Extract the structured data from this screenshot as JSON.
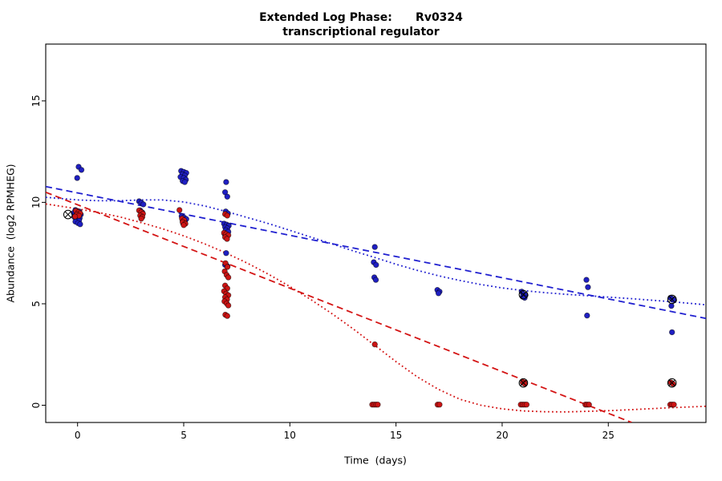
{
  "chart_data": {
    "type": "scatter",
    "title_lines": [
      "Extended Log Phase:      Rv0324",
      "transcriptional regulator"
    ],
    "xlabel": "Time  (days)",
    "ylabel": "Abundance  (log2 RPMHEG)",
    "xlim": [
      -1.5,
      29.6
    ],
    "ylim": [
      -0.85,
      17.8
    ],
    "xticks": [
      0,
      5,
      10,
      15,
      20,
      25
    ],
    "yticks": [
      0,
      5,
      10,
      15
    ],
    "grid": false,
    "legend": null,
    "point_colors": {
      "blue": "#1f1fc3",
      "red": "#cc1414"
    },
    "series": [
      {
        "name": "blue",
        "color": "#1f1fc3",
        "points": [
          [
            0.05,
            11.75
          ],
          [
            0.18,
            11.6
          ],
          [
            -0.02,
            11.2
          ],
          [
            -0.1,
            9.62
          ],
          [
            0.08,
            9.55
          ],
          [
            -0.18,
            9.48
          ],
          [
            0.0,
            9.45
          ],
          [
            0.15,
            9.4
          ],
          [
            -0.08,
            9.35
          ],
          [
            0.05,
            9.3
          ],
          [
            -0.15,
            9.28
          ],
          [
            0.1,
            9.22
          ],
          [
            -0.03,
            9.15
          ],
          [
            0.07,
            9.1
          ],
          [
            -0.1,
            9.05
          ],
          [
            0.02,
            8.98
          ],
          [
            0.12,
            8.92
          ],
          [
            2.9,
            10.05
          ],
          [
            3.0,
            9.98
          ],
          [
            3.1,
            9.9
          ],
          [
            2.95,
            9.6
          ],
          [
            3.05,
            9.5
          ],
          [
            4.88,
            11.55
          ],
          [
            5.0,
            11.5
          ],
          [
            5.12,
            11.45
          ],
          [
            4.93,
            11.38
          ],
          [
            5.05,
            11.32
          ],
          [
            4.85,
            11.25
          ],
          [
            5.0,
            11.2
          ],
          [
            5.1,
            11.12
          ],
          [
            4.95,
            11.05
          ],
          [
            5.05,
            11.0
          ],
          [
            4.9,
            9.32
          ],
          [
            5.02,
            9.25
          ],
          [
            5.12,
            9.18
          ],
          [
            4.95,
            9.1
          ],
          [
            5.05,
            9.02
          ],
          [
            4.98,
            8.95
          ],
          [
            7.0,
            11.0
          ],
          [
            6.95,
            10.5
          ],
          [
            7.05,
            10.28
          ],
          [
            6.98,
            9.55
          ],
          [
            7.08,
            9.45
          ],
          [
            6.9,
            8.95
          ],
          [
            7.02,
            8.9
          ],
          [
            7.12,
            8.85
          ],
          [
            6.95,
            8.78
          ],
          [
            7.05,
            8.72
          ],
          [
            6.98,
            8.62
          ],
          [
            7.1,
            8.55
          ],
          [
            6.92,
            8.45
          ],
          [
            7.03,
            8.32
          ],
          [
            7.0,
            7.5
          ],
          [
            6.95,
            6.92
          ],
          [
            7.06,
            6.85
          ],
          [
            14.0,
            7.8
          ],
          [
            13.95,
            7.05
          ],
          [
            14.06,
            6.92
          ],
          [
            13.98,
            6.3
          ],
          [
            14.05,
            6.18
          ],
          [
            16.95,
            5.68
          ],
          [
            17.05,
            5.6
          ],
          [
            17.0,
            5.52
          ],
          [
            20.92,
            5.6
          ],
          [
            21.0,
            5.48
          ],
          [
            21.1,
            5.42
          ],
          [
            20.97,
            5.35
          ],
          [
            21.06,
            5.3
          ],
          [
            23.97,
            6.18
          ],
          [
            24.04,
            5.82
          ],
          [
            24.0,
            4.42
          ],
          [
            27.93,
            5.3
          ],
          [
            28.02,
            5.24
          ],
          [
            28.1,
            5.18
          ],
          [
            27.97,
            4.9
          ],
          [
            28.0,
            3.6
          ]
        ]
      },
      {
        "name": "red",
        "color": "#cc1414",
        "points": [
          [
            -0.08,
            9.58
          ],
          [
            0.04,
            9.52
          ],
          [
            0.12,
            9.46
          ],
          [
            -0.04,
            9.4
          ],
          [
            0.06,
            9.34
          ],
          [
            -0.12,
            9.3
          ],
          [
            2.9,
            9.6
          ],
          [
            3.0,
            9.52
          ],
          [
            3.08,
            9.44
          ],
          [
            2.95,
            9.35
          ],
          [
            3.05,
            9.28
          ],
          [
            3.0,
            9.2
          ],
          [
            4.8,
            9.62
          ],
          [
            4.92,
            9.2
          ],
          [
            5.02,
            9.12
          ],
          [
            4.95,
            9.02
          ],
          [
            5.08,
            8.95
          ],
          [
            5.0,
            8.88
          ],
          [
            6.95,
            9.42
          ],
          [
            7.05,
            9.35
          ],
          [
            6.9,
            8.5
          ],
          [
            7.0,
            8.44
          ],
          [
            7.1,
            8.38
          ],
          [
            6.95,
            8.28
          ],
          [
            7.04,
            8.2
          ],
          [
            6.97,
            7.0
          ],
          [
            7.06,
            6.82
          ],
          [
            6.93,
            6.6
          ],
          [
            7.02,
            6.42
          ],
          [
            7.1,
            6.3
          ],
          [
            6.95,
            5.9
          ],
          [
            7.05,
            5.76
          ],
          [
            6.9,
            5.62
          ],
          [
            7.0,
            5.5
          ],
          [
            7.1,
            5.42
          ],
          [
            6.95,
            5.32
          ],
          [
            7.04,
            5.22
          ],
          [
            6.92,
            5.12
          ],
          [
            7.02,
            5.02
          ],
          [
            7.1,
            4.92
          ],
          [
            6.96,
            4.46
          ],
          [
            7.05,
            4.4
          ],
          [
            14.0,
            3.0
          ],
          [
            13.88,
            0.03
          ],
          [
            13.97,
            0.03
          ],
          [
            14.06,
            0.03
          ],
          [
            14.14,
            0.03
          ],
          [
            16.96,
            0.03
          ],
          [
            17.05,
            0.03
          ],
          [
            20.97,
            1.12
          ],
          [
            21.06,
            1.06
          ],
          [
            20.88,
            0.03
          ],
          [
            20.97,
            0.03
          ],
          [
            21.06,
            0.03
          ],
          [
            21.15,
            0.03
          ],
          [
            23.92,
            0.03
          ],
          [
            24.0,
            0.03
          ],
          [
            24.09,
            0.03
          ],
          [
            27.95,
            1.12
          ],
          [
            28.04,
            1.06
          ],
          [
            27.92,
            0.03
          ],
          [
            28.0,
            0.03
          ],
          [
            28.09,
            0.03
          ]
        ]
      }
    ],
    "lines": [
      {
        "name": "blue-dashed-fit",
        "color": "#2020d0",
        "style": "dashed",
        "points": [
          [
            -1.5,
            10.78
          ],
          [
            29.6,
            4.28
          ]
        ]
      },
      {
        "name": "blue-dotted-fit",
        "color": "#2020d0",
        "style": "dotted",
        "points": [
          [
            -1.5,
            10.25
          ],
          [
            0,
            10.12
          ],
          [
            1,
            10.08
          ],
          [
            2,
            10.08
          ],
          [
            3,
            10.12
          ],
          [
            4,
            10.12
          ],
          [
            5,
            10.02
          ],
          [
            6,
            9.82
          ],
          [
            7,
            9.55
          ],
          [
            8,
            9.25
          ],
          [
            9,
            8.95
          ],
          [
            10,
            8.62
          ],
          [
            11,
            8.28
          ],
          [
            12,
            7.95
          ],
          [
            13,
            7.6
          ],
          [
            14,
            7.28
          ],
          [
            15,
            6.95
          ],
          [
            16,
            6.65
          ],
          [
            17,
            6.38
          ],
          [
            18,
            6.15
          ],
          [
            19,
            5.95
          ],
          [
            20,
            5.78
          ],
          [
            21,
            5.65
          ],
          [
            22,
            5.55
          ],
          [
            23,
            5.47
          ],
          [
            24,
            5.4
          ],
          [
            25,
            5.33
          ],
          [
            26,
            5.26
          ],
          [
            27,
            5.18
          ],
          [
            28,
            5.1
          ],
          [
            29.6,
            4.95
          ]
        ]
      },
      {
        "name": "red-dashed-fit",
        "color": "#d41414",
        "style": "dashed",
        "points": [
          [
            -1.5,
            10.5
          ],
          [
            26.1,
            -0.85
          ]
        ]
      },
      {
        "name": "red-dotted-fit",
        "color": "#d41414",
        "style": "dotted",
        "points": [
          [
            -1.5,
            9.92
          ],
          [
            0,
            9.68
          ],
          [
            1,
            9.5
          ],
          [
            2,
            9.28
          ],
          [
            3,
            9.0
          ],
          [
            4,
            8.7
          ],
          [
            5,
            8.35
          ],
          [
            6,
            7.95
          ],
          [
            7,
            7.5
          ],
          [
            8,
            7.0
          ],
          [
            9,
            6.45
          ],
          [
            10,
            5.85
          ],
          [
            11,
            5.2
          ],
          [
            12,
            4.5
          ],
          [
            13,
            3.75
          ],
          [
            14,
            2.95
          ],
          [
            15,
            2.15
          ],
          [
            16,
            1.4
          ],
          [
            17,
            0.78
          ],
          [
            18,
            0.3
          ],
          [
            19,
            0.0
          ],
          [
            20,
            -0.18
          ],
          [
            21,
            -0.28
          ],
          [
            22,
            -0.32
          ],
          [
            23,
            -0.33
          ],
          [
            24,
            -0.3
          ],
          [
            25,
            -0.27
          ],
          [
            26,
            -0.22
          ],
          [
            27,
            -0.17
          ],
          [
            28,
            -0.12
          ],
          [
            29.6,
            -0.05
          ]
        ]
      }
    ],
    "flagged_points": [
      {
        "x": -0.45,
        "y": 9.4
      },
      {
        "x": 21.0,
        "y": 5.45
      },
      {
        "x": 21.0,
        "y": 1.1
      },
      {
        "x": 28.0,
        "y": 5.22
      },
      {
        "x": 28.0,
        "y": 1.1
      }
    ],
    "flag_marker": "circle-x"
  }
}
